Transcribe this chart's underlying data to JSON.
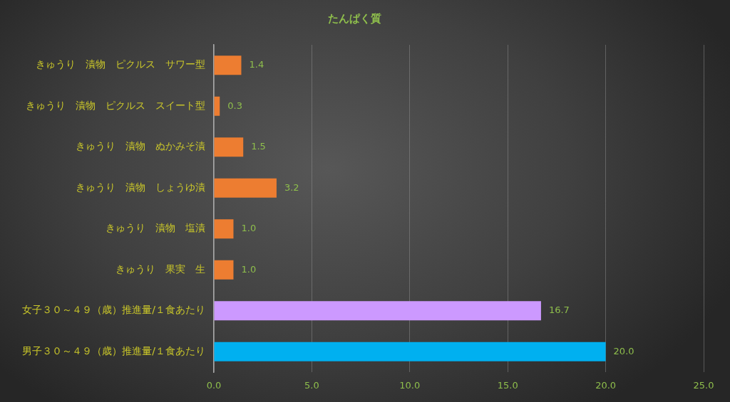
{
  "chart_data": {
    "type": "bar",
    "orientation": "horizontal",
    "title": "たんぱく質",
    "categories": [
      "きゅうり　漬物　ピクルス　サワー型",
      "きゅうり　漬物　ピクルス　スイート型",
      "きゅうり　漬物　ぬかみそ漬",
      "きゅうり　漬物　しょうゆ漬",
      "きゅうり　漬物　塩漬",
      "きゅうり　果実　生",
      "女子３０～４９（歳）推進量/１食あたり",
      "男子３０～４９（歳）推進量/１食あたり"
    ],
    "values": [
      1.4,
      0.3,
      1.5,
      3.2,
      1.0,
      1.0,
      16.7,
      20.0
    ],
    "colors": [
      "#ed7d31",
      "#ed7d31",
      "#ed7d31",
      "#ed7d31",
      "#ed7d31",
      "#ed7d31",
      "#cc99ff",
      "#00b0f0"
    ],
    "value_labels": [
      "1.4",
      "0.3",
      "1.5",
      "3.2",
      "1.0",
      "1.0",
      "16.7",
      "20.0"
    ],
    "xlim": [
      0,
      25
    ],
    "xticks": [
      {
        "value": 0,
        "label": "0.0"
      },
      {
        "value": 5,
        "label": "5.0"
      },
      {
        "value": 10,
        "label": "10.0"
      },
      {
        "value": 15,
        "label": "15.0"
      },
      {
        "value": 20,
        "label": "20.0"
      },
      {
        "value": 25,
        "label": "25.0"
      }
    ],
    "grid": "x"
  }
}
